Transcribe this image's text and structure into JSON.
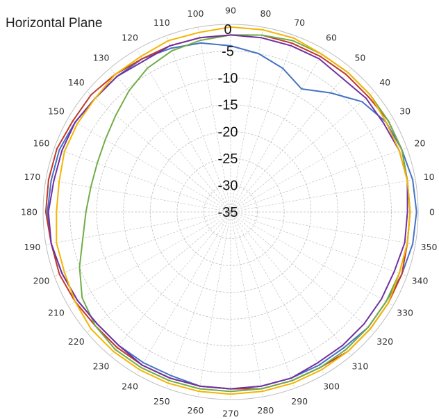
{
  "chart_data": {
    "type": "line",
    "subtype": "polar",
    "title": "Horizontal Plane",
    "angular_unit": "degrees",
    "angle_ticks": [
      "0",
      "10",
      "20",
      "30",
      "40",
      "50",
      "60",
      "70",
      "80",
      "90",
      "100",
      "110",
      "120",
      "130",
      "140",
      "150",
      "160",
      "170",
      "180",
      "190",
      "200",
      "210",
      "220",
      "230",
      "240",
      "250",
      "260",
      "270",
      "280",
      "290",
      "300",
      "310",
      "320",
      "330",
      "340",
      "350"
    ],
    "radial_ticks": [
      "0",
      "-5",
      "-10",
      "-15",
      "-20",
      "-25",
      "-30",
      "-35"
    ],
    "radial_range": [
      -35,
      0
    ],
    "grid": true,
    "legend": "none",
    "angles": [
      0,
      10,
      20,
      30,
      40,
      50,
      60,
      70,
      80,
      90,
      100,
      110,
      120,
      130,
      140,
      150,
      160,
      170,
      180,
      190,
      200,
      210,
      220,
      230,
      240,
      250,
      260,
      270,
      280,
      290,
      300,
      310,
      320,
      330,
      340,
      350
    ],
    "series": [
      {
        "color": "#4472C4",
        "values": [
          -0.3,
          -0.5,
          -1,
          -1.5,
          -3,
          -6,
          -8.5,
          -6.5,
          -5,
          -4,
          -3,
          -2.5,
          -2,
          -2,
          -2,
          -1.5,
          -1,
          -1,
          -0.8,
          -1,
          -1.5,
          -2,
          -2.5,
          -2.5,
          -2.5,
          -2.5,
          -2,
          -2,
          -2,
          -2,
          -2,
          -2,
          -1.5,
          -1.5,
          -1,
          -0.5
        ]
      },
      {
        "color": "#C0392B",
        "values": [
          -1.5,
          -1.5,
          -1,
          -1,
          -1.5,
          -1.5,
          -1.5,
          -1.5,
          -1.5,
          -2,
          -2,
          -2,
          -2,
          -1.5,
          -1,
          -1,
          -0.5,
          -0.5,
          -0.5,
          -1,
          -1,
          -1.5,
          -2,
          -2,
          -2,
          -2,
          -2,
          -2,
          -1.5,
          -1.5,
          -1.5,
          -1,
          -1,
          -1,
          -1,
          -1.5
        ]
      },
      {
        "color": "#70AD47",
        "values": [
          -1.5,
          -1.5,
          -1,
          -1,
          -1,
          -1,
          -1,
          -1,
          -1.5,
          -2,
          -2.5,
          -3,
          -4,
          -5.5,
          -7,
          -8,
          -8.5,
          -8.5,
          -8,
          -7,
          -5,
          -3,
          -2,
          -1.5,
          -1.5,
          -1.5,
          -1.5,
          -1.5,
          -1.5,
          -1.5,
          -1.5,
          -1.5,
          -1.5,
          -1.5,
          -1.5,
          -1.5
        ]
      },
      {
        "color": "#7030A0",
        "values": [
          -2,
          -1.5,
          -1.5,
          -2,
          -2,
          -2.5,
          -2,
          -2,
          -2,
          -2,
          -2,
          -2,
          -2.5,
          -2,
          -2,
          -1.5,
          -1.5,
          -1.5,
          -1,
          -1,
          -1.5,
          -2,
          -2.5,
          -2.5,
          -2,
          -2,
          -2,
          -2,
          -2,
          -2,
          -2.5,
          -2.5,
          -2.5,
          -2.5,
          -2.5,
          -2
        ]
      },
      {
        "color": "#F4B400",
        "values": [
          -1.5,
          -1.5,
          -1.5,
          -1.5,
          -1,
          -1,
          -1,
          -0.5,
          -0.5,
          -0.5,
          -1,
          -1,
          -1.5,
          -1.5,
          -2,
          -2,
          -2,
          -2.5,
          -2.5,
          -2,
          -2,
          -1.5,
          -1,
          -1,
          -1,
          -1,
          -1,
          -1,
          -1,
          -1,
          -1,
          -1,
          -1,
          -1,
          -1.5,
          -1.5
        ]
      }
    ]
  }
}
